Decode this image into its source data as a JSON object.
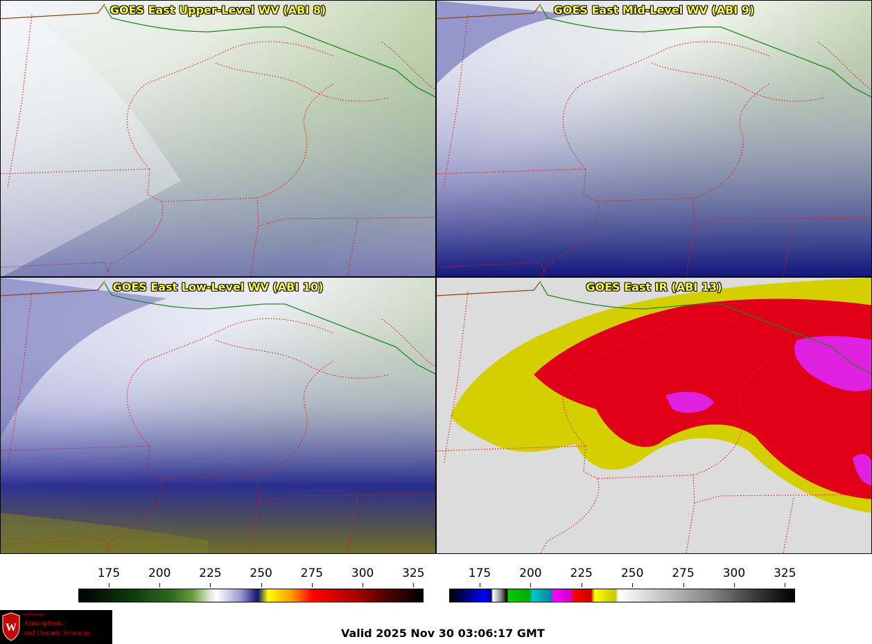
{
  "panels": [
    {
      "title": "GOES East Upper-Level WV (ABI 8)",
      "palette": "wv",
      "intensity": 0.15
    },
    {
      "title": "GOES East Mid-Level WV (ABI 9)",
      "palette": "wv",
      "intensity": 0.35
    },
    {
      "title": "GOES East Low-Level WV (ABI 10)",
      "palette": "wv",
      "intensity": 0.6
    },
    {
      "title": "GOES East IR (ABI 13)",
      "palette": "ir",
      "intensity": 1.0
    }
  ],
  "colorbar_wv": {
    "ticks": [
      "175",
      "200",
      "225",
      "250",
      "275",
      "300",
      "325"
    ],
    "min": 160,
    "max": 330
  },
  "colorbar_ir": {
    "ticks": [
      "175",
      "200",
      "225",
      "250",
      "275",
      "300",
      "325"
    ],
    "min": 160,
    "max": 330
  },
  "logo": {
    "dept": "Department of",
    "line1": "Atmospheric",
    "line2": "and Oceanic Sciences"
  },
  "valid_text": "Valid 2025 Nov 30 03:06:17 GMT",
  "colors": {
    "border_state": "#e31a1c",
    "border_country": "#1a8a1a",
    "title_text": "#ffff33",
    "logo_red": "#c5050c"
  }
}
